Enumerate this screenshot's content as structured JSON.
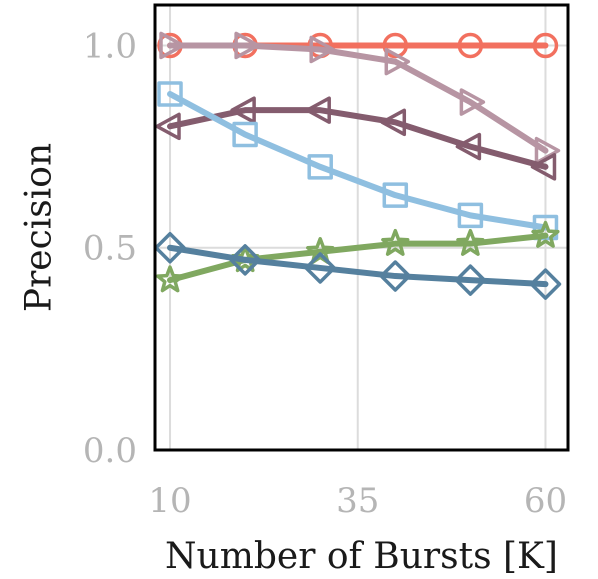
{
  "chart_data": {
    "type": "line",
    "title": "",
    "xlabel": "Number of Bursts [K]",
    "ylabel": "Precision",
    "xlim": [
      8,
      63
    ],
    "ylim": [
      0,
      1.1
    ],
    "xticks": [
      10,
      35,
      60
    ],
    "xtick_labels": [
      "10",
      "35",
      "60"
    ],
    "yticks": [
      0.0,
      0.5,
      1.0
    ],
    "ytick_labels": [
      "0.0",
      "0.5",
      "1.0"
    ],
    "grid": true,
    "legend": "none",
    "x": [
      10,
      20,
      30,
      40,
      50,
      60
    ],
    "series": [
      {
        "color": "#f2705f",
        "marker": "circle",
        "values": [
          1.0,
          1.0,
          1.0,
          1.0,
          1.0,
          1.0
        ]
      },
      {
        "color": "#b795a3",
        "marker": "triangle-right",
        "values": [
          1.0,
          1.0,
          0.99,
          0.96,
          0.86,
          0.74
        ]
      },
      {
        "color": "#845c6e",
        "marker": "triangle-left",
        "values": [
          0.8,
          0.84,
          0.84,
          0.81,
          0.75,
          0.7
        ]
      },
      {
        "color": "#8fbfe0",
        "marker": "square",
        "values": [
          0.88,
          0.78,
          0.7,
          0.63,
          0.58,
          0.55
        ]
      },
      {
        "color": "#80a860",
        "marker": "star",
        "values": [
          0.42,
          0.47,
          0.49,
          0.51,
          0.51,
          0.53
        ]
      },
      {
        "color": "#55809e",
        "marker": "diamond",
        "values": [
          0.5,
          0.47,
          0.45,
          0.43,
          0.42,
          0.41
        ]
      }
    ]
  }
}
